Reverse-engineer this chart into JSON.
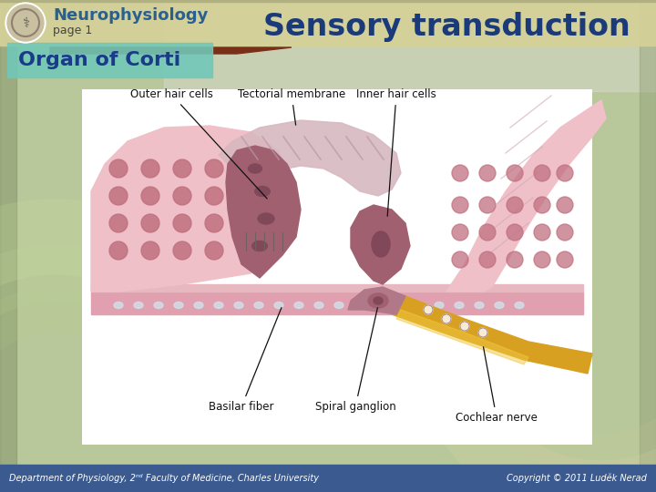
{
  "title": "Sensory transduction",
  "subtitle": "Neurophysiology",
  "page": "page 1",
  "section_title": "Organ of Corti",
  "footer_left": "Department of Physiology, 2ⁿᵈ Faculty of Medicine, Charles University",
  "footer_right": "Copyright © 2011 Luděk Nerad",
  "bg_top": "#d8d4b0",
  "bg_body": "#c8cca8",
  "header_band_color": "#d4d098",
  "header_bar_color": "#7a3018",
  "title_color": "#1a3a7a",
  "subtitle_color": "#2a6090",
  "subtitle_color2": "#1a5080",
  "page_color": "#444444",
  "section_bg_color": "#70c8b8",
  "section_text_color": "#1a3a8a",
  "footer_bg_color": "#3a5a90",
  "footer_text_color": "#ffffff",
  "diagram_bg": "#ffffff",
  "pink_light": "#f0c0c8",
  "pink_mid": "#e0a0b0",
  "pink_dark": "#c07888",
  "mauve": "#a06070",
  "mauve_dark": "#804858",
  "stripe_c": "#d8b8c0",
  "gold_c": "#d8a020",
  "gold_light": "#e8c060",
  "nerve_purple": "#906878",
  "bg_green": "#b8c89a",
  "label_tectorial": "Tectorial membrane",
  "label_outer": "Outer hair cells",
  "label_inner": "Inner hair cells",
  "label_basilar": "Basilar fiber",
  "label_spiral": "Spiral ganglion",
  "label_cochlear": "Cochlear nerve"
}
